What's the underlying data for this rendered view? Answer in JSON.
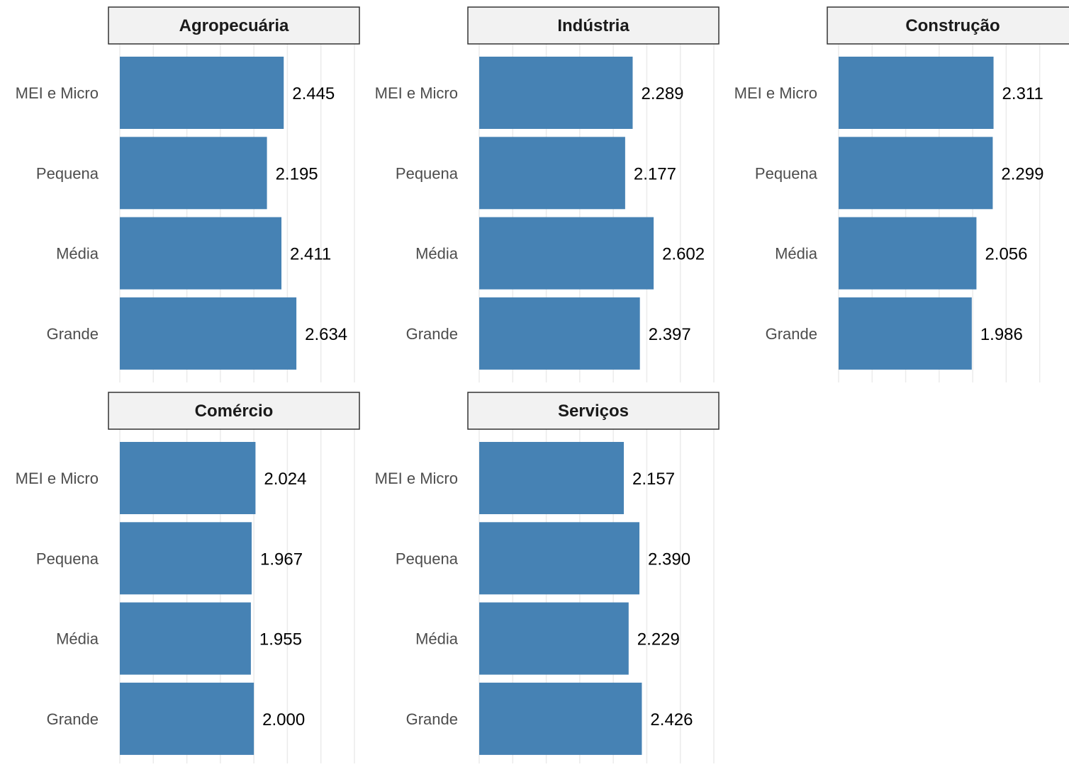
{
  "chart_data": {
    "type": "bar",
    "orientation": "horizontal",
    "faceted": true,
    "categories": [
      "MEI e Micro",
      "Pequena",
      "Média",
      "Grande"
    ],
    "xlim": [
      0,
      3.5
    ],
    "grid": true,
    "bar_color": "#4682b4",
    "facets": [
      {
        "name": "Agropecuária",
        "values": [
          2.445,
          2.195,
          2.411,
          2.634
        ],
        "labels": [
          "2.445",
          "2.195",
          "2.411",
          "2.634"
        ]
      },
      {
        "name": "Indústria",
        "values": [
          2.289,
          2.177,
          2.602,
          2.397
        ],
        "labels": [
          "2.289",
          "2.177",
          "2.602",
          "2.397"
        ]
      },
      {
        "name": "Construção",
        "values": [
          2.311,
          2.299,
          2.056,
          1.986
        ],
        "labels": [
          "2.311",
          "2.299",
          "2.056",
          "1.986"
        ]
      },
      {
        "name": "Comércio",
        "values": [
          2.024,
          1.967,
          1.955,
          2.0
        ],
        "labels": [
          "2.024",
          "1.967",
          "1.955",
          "2.000"
        ]
      },
      {
        "name": "Serviços",
        "values": [
          2.157,
          2.39,
          2.229,
          2.426
        ],
        "labels": [
          "2.157",
          "2.390",
          "2.229",
          "2.426"
        ]
      }
    ]
  }
}
